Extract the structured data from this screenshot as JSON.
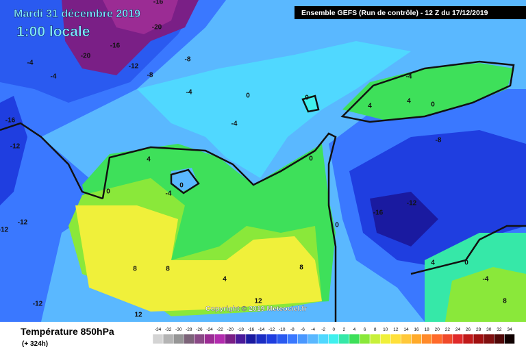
{
  "title": "Mardi 31 décembre 2019",
  "subtitle": "1:00 locale",
  "run_info": "Ensemble GEFS  (Run de contrôle)  - 12 Z du 17/12/2019",
  "copyright": "Copyright © 2019 Meteociel.fr",
  "legend": {
    "title": "Température 850hPa",
    "lead_time": "(+ 324h)",
    "scale": [
      {
        "value": -34,
        "color": "#d4d4d4"
      },
      {
        "value": -32,
        "color": "#b4b4b4"
      },
      {
        "value": -30,
        "color": "#969696"
      },
      {
        "value": -28,
        "color": "#7c6479"
      },
      {
        "value": -26,
        "color": "#8a4a86"
      },
      {
        "value": -24,
        "color": "#9b2c94"
      },
      {
        "value": -22,
        "color": "#b22cae"
      },
      {
        "value": -20,
        "color": "#7a1f86"
      },
      {
        "value": -18,
        "color": "#4a1a9a"
      },
      {
        "value": -16,
        "color": "#1a1aa0"
      },
      {
        "value": -14,
        "color": "#1c2ec4"
      },
      {
        "value": -12,
        "color": "#1f3ee0"
      },
      {
        "value": -10,
        "color": "#2a5af0"
      },
      {
        "value": -8,
        "color": "#3a78ff"
      },
      {
        "value": -6,
        "color": "#4a98ff"
      },
      {
        "value": -4,
        "color": "#5ab8ff"
      },
      {
        "value": -2,
        "color": "#50d8ff"
      },
      {
        "value": 0,
        "color": "#40f0ee"
      },
      {
        "value": 2,
        "color": "#36e8a8"
      },
      {
        "value": 4,
        "color": "#3ee05a"
      },
      {
        "value": 6,
        "color": "#8ae83a"
      },
      {
        "value": 8,
        "color": "#c8f03a"
      },
      {
        "value": 10,
        "color": "#f0f03a"
      },
      {
        "value": 12,
        "color": "#ffe03a"
      },
      {
        "value": 14,
        "color": "#ffc83a"
      },
      {
        "value": 16,
        "color": "#ffaa2a"
      },
      {
        "value": 18,
        "color": "#ff8a2a"
      },
      {
        "value": 20,
        "color": "#ff6a2a"
      },
      {
        "value": 22,
        "color": "#f04a2a"
      },
      {
        "value": 24,
        "color": "#e02a2a"
      },
      {
        "value": 26,
        "color": "#c01a1a"
      },
      {
        "value": 28,
        "color": "#a01010"
      },
      {
        "value": 30,
        "color": "#801010"
      },
      {
        "value": 32,
        "color": "#500808"
      },
      {
        "value": 34,
        "color": "#100000"
      }
    ]
  },
  "contour_labels": [
    -16,
    -20,
    -20,
    -16,
    -4,
    -4,
    -8,
    -12,
    -8,
    -16,
    -12,
    -4,
    0,
    -4,
    0,
    0,
    4,
    0,
    -4,
    0,
    -12,
    -12,
    8,
    8,
    4,
    -12,
    12,
    12,
    8,
    0,
    -16,
    -12,
    -8,
    -4,
    4,
    4,
    0,
    4,
    0,
    -4,
    8
  ]
}
